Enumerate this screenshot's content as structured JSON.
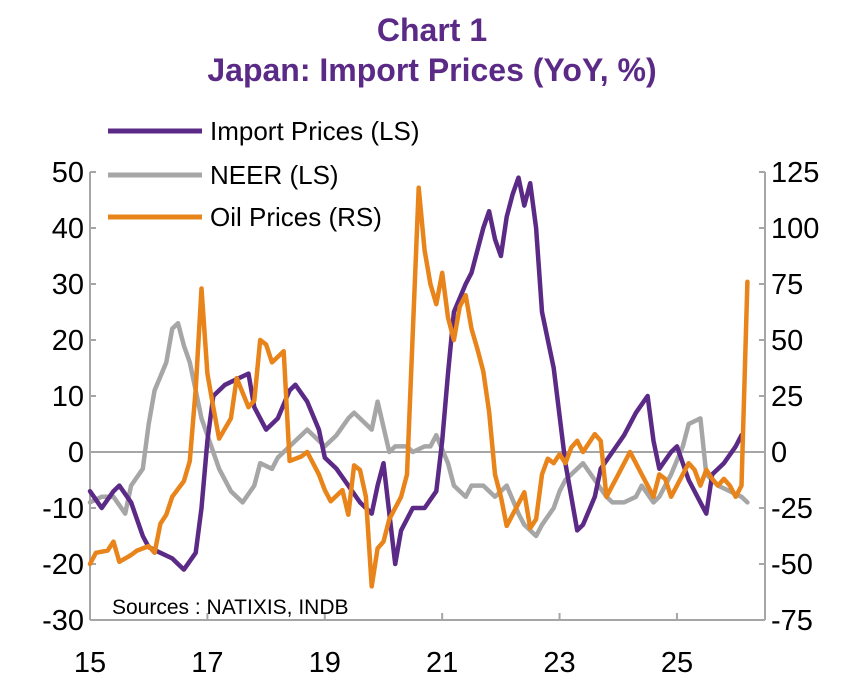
{
  "chart_data": {
    "type": "line",
    "title": "Chart 1",
    "subtitle": "Japan: Import Prices (YoY, %)",
    "source": "Sources : NATIXIS, INDB",
    "x_ticks": [
      "15",
      "17",
      "19",
      "21",
      "23",
      "25"
    ],
    "y_left": {
      "lim": [
        -30,
        50
      ],
      "ticks": [
        "-30",
        "-20",
        "-10",
        "0",
        "10",
        "20",
        "30",
        "40",
        "50"
      ]
    },
    "y_right": {
      "lim": [
        -75,
        125
      ],
      "ticks": [
        "-75",
        "-50",
        "-25",
        "0",
        "25",
        "50",
        "75",
        "100",
        "125"
      ]
    },
    "grid": false,
    "legend_position": "top-left",
    "colors": {
      "import": "#5b2a86",
      "neer": "#a6a6a6",
      "oil": "#e8841a",
      "zero": "#a6a6a6",
      "axis": "#a6a6a6"
    },
    "series": [
      {
        "name": "Import Prices (LS)",
        "axis": "left",
        "x": [
          2015.0,
          2015.2,
          2015.4,
          2015.5,
          2015.7,
          2015.9,
          2016.0,
          2016.2,
          2016.4,
          2016.5,
          2016.6,
          2016.8,
          2016.9,
          2017.0,
          2017.1,
          2017.3,
          2017.5,
          2017.7,
          2017.8,
          2018.0,
          2018.2,
          2018.4,
          2018.5,
          2018.7,
          2018.9,
          2019.0,
          2019.2,
          2019.4,
          2019.6,
          2019.8,
          2019.9,
          2020.0,
          2020.2,
          2020.3,
          2020.5,
          2020.7,
          2020.9,
          2021.0,
          2021.1,
          2021.2,
          2021.4,
          2021.5,
          2021.7,
          2021.8,
          2021.9,
          2022.0,
          2022.1,
          2022.2,
          2022.3,
          2022.4,
          2022.5,
          2022.6,
          2022.7,
          2022.9,
          2023.1,
          2023.3,
          2023.4,
          2023.6,
          2023.7,
          2023.9,
          2024.1,
          2024.3,
          2024.5,
          2024.6,
          2024.7,
          2024.9,
          2025.0,
          2025.1,
          2025.2,
          2025.4,
          2025.5,
          2025.6,
          2025.8,
          2026.0,
          2026.1
        ],
        "values": [
          -7,
          -10,
          -7,
          -6,
          -9,
          -15,
          -17,
          -18,
          -19,
          -20,
          -21,
          -18,
          -10,
          2,
          10,
          12,
          13,
          14,
          8,
          4,
          6,
          11,
          12,
          9,
          4,
          -1,
          -3,
          -6,
          -9,
          -11,
          -6,
          -2,
          -20,
          -14,
          -10,
          -10,
          -7,
          2,
          14,
          25,
          30,
          32,
          40,
          43,
          38,
          35,
          42,
          46,
          49,
          44,
          48,
          40,
          25,
          15,
          -2,
          -14,
          -13,
          -8,
          -3,
          0,
          3,
          7,
          10,
          2,
          -3,
          0,
          1,
          -2,
          -5,
          -9,
          -11,
          -4,
          -2,
          1,
          3
        ]
      },
      {
        "name": "NEER (LS)",
        "axis": "left",
        "x": [
          2015.0,
          2015.2,
          2015.4,
          2015.6,
          2015.7,
          2015.9,
          2016.0,
          2016.1,
          2016.3,
          2016.4,
          2016.5,
          2016.6,
          2016.7,
          2016.8,
          2016.9,
          2017.0,
          2017.2,
          2017.4,
          2017.6,
          2017.8,
          2017.9,
          2018.1,
          2018.2,
          2018.4,
          2018.6,
          2018.7,
          2018.9,
          2019.0,
          2019.2,
          2019.4,
          2019.5,
          2019.7,
          2019.8,
          2019.9,
          2020.1,
          2020.2,
          2020.4,
          2020.5,
          2020.7,
          2020.8,
          2020.9,
          2021.1,
          2021.2,
          2021.4,
          2021.5,
          2021.7,
          2021.9,
          2022.0,
          2022.1,
          2022.3,
          2022.4,
          2022.5,
          2022.6,
          2022.7,
          2022.9,
          2023.0,
          2023.1,
          2023.3,
          2023.4,
          2023.6,
          2023.8,
          2023.9,
          2024.1,
          2024.3,
          2024.4,
          2024.6,
          2024.7,
          2024.9,
          2025.1,
          2025.2,
          2025.4,
          2025.5,
          2025.7,
          2025.9,
          2026.1,
          2026.2
        ],
        "values": [
          -9,
          -8,
          -8,
          -11,
          -6,
          -3,
          5,
          11,
          16,
          22,
          23,
          19,
          16,
          11,
          6,
          3,
          -3,
          -7,
          -9,
          -6,
          -2,
          -3,
          -1,
          1,
          3,
          4,
          2,
          1,
          3,
          6,
          7,
          5,
          4,
          9,
          0,
          1,
          1,
          0,
          1,
          1,
          3,
          -2,
          -6,
          -8,
          -6,
          -6,
          -8,
          -7,
          -6,
          -11,
          -13,
          -14,
          -15,
          -13,
          -10,
          -7,
          -5,
          -3,
          -2,
          -5,
          -8,
          -9,
          -9,
          -8,
          -6,
          -9,
          -8,
          -4,
          1,
          5,
          6,
          -4,
          -6,
          -7,
          -8,
          -9
        ]
      },
      {
        "name": "Oil Prices (RS)",
        "axis": "right",
        "x": [
          2015.0,
          2015.1,
          2015.3,
          2015.4,
          2015.5,
          2015.7,
          2015.8,
          2016.0,
          2016.1,
          2016.2,
          2016.3,
          2016.4,
          2016.6,
          2016.7,
          2016.8,
          2016.9,
          2017.0,
          2017.1,
          2017.2,
          2017.4,
          2017.5,
          2017.7,
          2017.8,
          2017.9,
          2018.0,
          2018.1,
          2018.3,
          2018.4,
          2018.6,
          2018.7,
          2018.9,
          2019.0,
          2019.1,
          2019.3,
          2019.4,
          2019.5,
          2019.6,
          2019.7,
          2019.8,
          2019.9,
          2020.0,
          2020.1,
          2020.2,
          2020.3,
          2020.4,
          2020.6,
          2020.7,
          2020.8,
          2020.9,
          2021.0,
          2021.1,
          2021.2,
          2021.3,
          2021.4,
          2021.5,
          2021.6,
          2021.7,
          2021.8,
          2021.9,
          2022.0,
          2022.1,
          2022.2,
          2022.3,
          2022.4,
          2022.5,
          2022.6,
          2022.7,
          2022.8,
          2022.9,
          2023.0,
          2023.1,
          2023.2,
          2023.3,
          2023.4,
          2023.6,
          2023.7,
          2023.8,
          2023.9,
          2024.0,
          2024.2,
          2024.3,
          2024.4,
          2024.5,
          2024.6,
          2024.7,
          2024.8,
          2024.9,
          2025.0,
          2025.1,
          2025.2,
          2025.3,
          2025.4,
          2025.5,
          2025.6,
          2025.7,
          2025.8,
          2025.9,
          2026.0,
          2026.1,
          2026.2
        ],
        "values": [
          -50,
          -45,
          -44,
          -40,
          -49,
          -46,
          -44,
          -42,
          -45,
          -32,
          -28,
          -20,
          -13,
          -4,
          28,
          73,
          35,
          20,
          6,
          15,
          33,
          20,
          23,
          50,
          48,
          40,
          45,
          -4,
          -2,
          0,
          -10,
          -17,
          -22,
          -17,
          -28,
          -6,
          -8,
          -20,
          -60,
          -43,
          -40,
          -30,
          -25,
          -20,
          -10,
          118,
          90,
          75,
          66,
          80,
          60,
          50,
          65,
          70,
          55,
          46,
          36,
          18,
          -10,
          -20,
          -33,
          -28,
          -23,
          -18,
          -34,
          -30,
          -10,
          -3,
          -5,
          -1,
          -5,
          2,
          5,
          0,
          8,
          5,
          -20,
          -15,
          -10,
          0,
          -5,
          -10,
          -15,
          -20,
          -10,
          -12,
          -20,
          -15,
          -10,
          -5,
          -8,
          -15,
          -8,
          -12,
          -15,
          -12,
          -15,
          -20,
          -15,
          76
        ]
      }
    ]
  }
}
